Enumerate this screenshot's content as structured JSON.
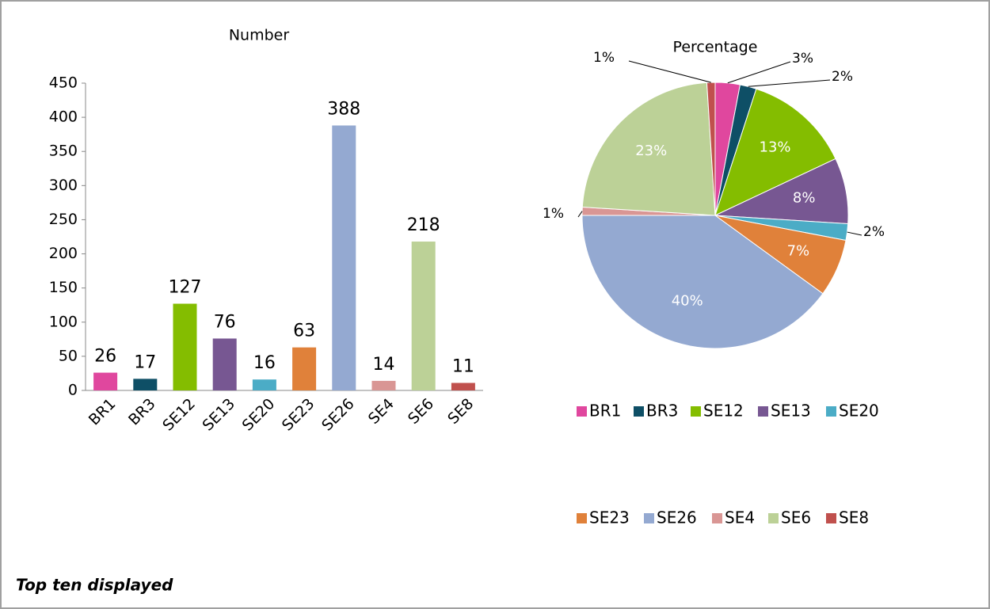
{
  "chart_data": [
    {
      "type": "bar",
      "title": "Number",
      "categories": [
        "BR1",
        "BR3",
        "SE12",
        "SE13",
        "SE20",
        "SE23",
        "SE26",
        "SE4",
        "SE6",
        "SE8"
      ],
      "values": [
        26,
        17,
        127,
        76,
        16,
        63,
        388,
        14,
        218,
        11
      ],
      "colors": [
        "#e0479e",
        "#0e4f66",
        "#84bd00",
        "#775792",
        "#4bacc6",
        "#e0813a",
        "#94a9d1",
        "#d99694",
        "#bcd197",
        "#c0504d"
      ],
      "ylim": [
        0,
        450
      ],
      "yticks": [
        0,
        50,
        100,
        150,
        200,
        250,
        300,
        350,
        400,
        450
      ],
      "grid": false
    },
    {
      "type": "pie",
      "title": "Percentage",
      "categories": [
        "BR1",
        "BR3",
        "SE12",
        "SE13",
        "SE20",
        "SE23",
        "SE26",
        "SE4",
        "SE6",
        "SE8"
      ],
      "values": [
        3,
        2,
        13,
        8,
        2,
        7,
        40,
        1,
        23,
        1
      ],
      "value_labels": [
        "3%",
        "2%",
        "13%",
        "8%",
        "2%",
        "7%",
        "40%",
        "1%",
        "23%",
        "1%"
      ],
      "colors": [
        "#e0479e",
        "#0e4f66",
        "#84bd00",
        "#775792",
        "#4bacc6",
        "#e0813a",
        "#94a9d1",
        "#d99694",
        "#bcd197",
        "#c0504d"
      ],
      "legend": "bottom"
    }
  ],
  "note": "Top ten displayed"
}
